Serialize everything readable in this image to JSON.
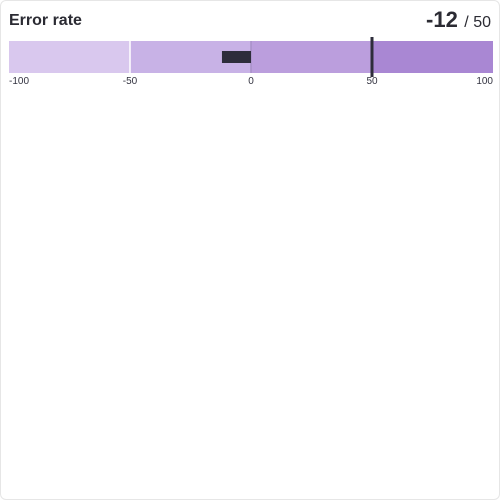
{
  "chart_data": {
    "type": "bullet",
    "title": "Error rate",
    "value": -12,
    "target": 50,
    "target_display": "50",
    "value_display": "-12",
    "separator": "/",
    "range": [
      -100,
      100
    ],
    "bands": [
      {
        "from": -100,
        "to": -50,
        "color": "#d9c8ee"
      },
      {
        "from": -50,
        "to": 0,
        "color": "#c8b2e6"
      },
      {
        "from": 0,
        "to": 50,
        "color": "#bb9edd"
      },
      {
        "from": 50,
        "to": 100,
        "color": "#a987d3"
      }
    ],
    "ticks": [
      {
        "value": -100,
        "label": "-100"
      },
      {
        "value": -50,
        "label": "-50"
      },
      {
        "value": 0,
        "label": "0"
      },
      {
        "value": 50,
        "label": "50"
      },
      {
        "value": 100,
        "label": "100"
      }
    ],
    "bar_color": "#2e2d3b",
    "target_color": "#2e2d3b"
  }
}
